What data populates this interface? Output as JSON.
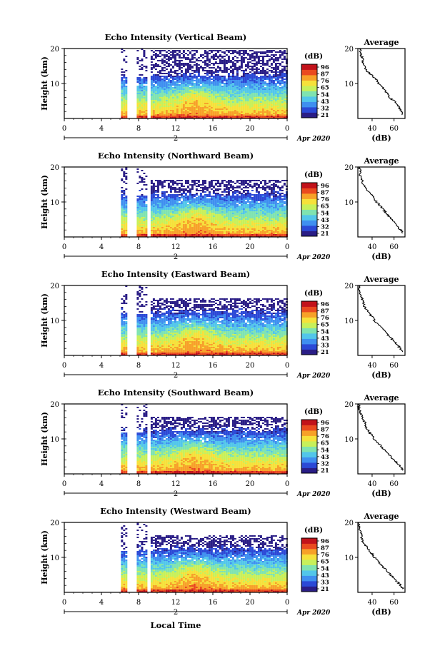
{
  "chart_data": {
    "type": "heatmap",
    "panels": [
      {
        "title": "Echo Intensity (Vertical Beam)",
        "ylabel": "Height (km)",
        "ylim": [
          0,
          20
        ],
        "yticks": [
          10,
          20
        ],
        "xticks": [
          "0",
          "4",
          "8",
          "12",
          "16",
          "20",
          "0"
        ],
        "date_marker": "2",
        "date_label": "Apr 2020",
        "cbar_label": "(dB)",
        "cbar_ticks": [
          "96",
          "87",
          "76",
          "65",
          "54",
          "43",
          "32",
          "21"
        ],
        "avg_title": "Average",
        "avg_xlabel": "(dB)",
        "avg_xticks": [
          "40",
          "60"
        ],
        "avg_xlim": [
          27,
          70
        ],
        "avg_profile": [
          [
            1,
            68
          ],
          [
            2,
            67
          ],
          [
            3,
            65
          ],
          [
            4,
            63
          ],
          [
            5,
            60
          ],
          [
            6,
            56
          ],
          [
            7,
            54
          ],
          [
            8,
            52
          ],
          [
            9,
            49
          ],
          [
            10,
            46
          ],
          [
            11,
            44
          ],
          [
            12,
            41
          ],
          [
            13,
            37
          ],
          [
            14,
            34
          ],
          [
            15,
            33
          ],
          [
            16,
            31
          ],
          [
            17,
            32
          ],
          [
            18,
            30
          ],
          [
            19,
            29
          ],
          [
            20,
            29
          ]
        ]
      },
      {
        "title": "Echo Intensity (Northward Beam)",
        "ylabel": "Height (km)",
        "ylim": [
          0,
          20
        ],
        "yticks": [
          10,
          20
        ],
        "xticks": [
          "0",
          "4",
          "8",
          "12",
          "16",
          "20",
          "0"
        ],
        "date_marker": "2",
        "date_label": "Apr 2020",
        "cbar_label": "(dB)",
        "cbar_ticks": [
          "96",
          "87",
          "76",
          "65",
          "54",
          "43",
          "32",
          "21"
        ],
        "avg_title": "Average",
        "avg_xlabel": "(dB)",
        "avg_xticks": [
          "40",
          "60"
        ],
        "avg_xlim": [
          27,
          70
        ],
        "avg_profile": [
          [
            1,
            68
          ],
          [
            2,
            66
          ],
          [
            3,
            63
          ],
          [
            4,
            61
          ],
          [
            5,
            58
          ],
          [
            6,
            55
          ],
          [
            7,
            52
          ],
          [
            8,
            50
          ],
          [
            9,
            47
          ],
          [
            10,
            44
          ],
          [
            11,
            42
          ],
          [
            12,
            40
          ],
          [
            13,
            37
          ],
          [
            14,
            34
          ],
          [
            15,
            32
          ],
          [
            16,
            31
          ],
          [
            17,
            30
          ],
          [
            18,
            29
          ],
          [
            19,
            29
          ],
          [
            20,
            28
          ]
        ]
      },
      {
        "title": "Echo Intensity (Eastward Beam)",
        "ylabel": "Height (km)",
        "ylim": [
          0,
          20
        ],
        "yticks": [
          10,
          20
        ],
        "xticks": [
          "0",
          "4",
          "8",
          "12",
          "16",
          "20",
          "0"
        ],
        "date_marker": "2",
        "date_label": "Apr 2020",
        "cbar_label": "(dB)",
        "cbar_ticks": [
          "96",
          "87",
          "76",
          "65",
          "54",
          "43",
          "33",
          "21"
        ],
        "avg_title": "Average",
        "avg_xlabel": "(dB)",
        "avg_xticks": [
          "40",
          "60"
        ],
        "avg_xlim": [
          27,
          70
        ],
        "avg_profile": [
          [
            1,
            68
          ],
          [
            2,
            66
          ],
          [
            3,
            63
          ],
          [
            4,
            60
          ],
          [
            5,
            57
          ],
          [
            6,
            54
          ],
          [
            7,
            51
          ],
          [
            8,
            48
          ],
          [
            9,
            45
          ],
          [
            10,
            42
          ],
          [
            11,
            40
          ],
          [
            12,
            37
          ],
          [
            13,
            35
          ],
          [
            14,
            33
          ],
          [
            15,
            32
          ],
          [
            16,
            31
          ],
          [
            17,
            30
          ],
          [
            18,
            29
          ],
          [
            19,
            28
          ],
          [
            20,
            28
          ]
        ]
      },
      {
        "title": "Echo Intensity (Southward Beam)",
        "ylabel": "Height (km)",
        "ylim": [
          0,
          20
        ],
        "yticks": [
          10,
          20
        ],
        "xticks": [
          "0",
          "4",
          "8",
          "12",
          "16",
          "20",
          "0"
        ],
        "date_marker": "2",
        "date_label": "Apr 2020",
        "cbar_label": "(dB)",
        "cbar_ticks": [
          "96",
          "87",
          "76",
          "65",
          "54",
          "43",
          "32",
          "21"
        ],
        "avg_title": "Average",
        "avg_xlabel": "(dB)",
        "avg_xticks": [
          "40",
          "60"
        ],
        "avg_xlim": [
          27,
          70
        ],
        "avg_profile": [
          [
            1,
            68
          ],
          [
            2,
            66
          ],
          [
            3,
            63
          ],
          [
            4,
            60
          ],
          [
            5,
            57
          ],
          [
            6,
            54
          ],
          [
            7,
            51
          ],
          [
            8,
            48
          ],
          [
            9,
            45
          ],
          [
            10,
            42
          ],
          [
            11,
            40
          ],
          [
            12,
            37
          ],
          [
            13,
            35
          ],
          [
            14,
            34
          ],
          [
            15,
            33
          ],
          [
            16,
            31
          ],
          [
            17,
            30
          ],
          [
            18,
            29
          ],
          [
            19,
            28
          ],
          [
            20,
            28
          ]
        ]
      },
      {
        "title": "Echo Intensity (Westward Beam)",
        "ylabel": "Height (km)",
        "ylim": [
          0,
          20
        ],
        "yticks": [
          10,
          20
        ],
        "xticks": [
          "0",
          "4",
          "8",
          "12",
          "16",
          "20",
          "0"
        ],
        "date_marker": "2",
        "date_label": "Apr 2020",
        "cbar_label": "(dB)",
        "cbar_ticks": [
          "96",
          "87",
          "76",
          "65",
          "54",
          "43",
          "33",
          "21"
        ],
        "avg_title": "Average",
        "avg_xlabel": "(dB)",
        "avg_xticks": [
          "40",
          "60"
        ],
        "avg_xlim": [
          27,
          70
        ],
        "avg_profile": [
          [
            1,
            68
          ],
          [
            2,
            66
          ],
          [
            3,
            63
          ],
          [
            4,
            60
          ],
          [
            5,
            57
          ],
          [
            6,
            54
          ],
          [
            7,
            51
          ],
          [
            8,
            48
          ],
          [
            9,
            45
          ],
          [
            10,
            42
          ],
          [
            11,
            40
          ],
          [
            12,
            37
          ],
          [
            13,
            35
          ],
          [
            14,
            33
          ],
          [
            15,
            31
          ],
          [
            16,
            30
          ],
          [
            17,
            30
          ],
          [
            18,
            29
          ],
          [
            19,
            28
          ],
          [
            20,
            28
          ]
        ]
      }
    ],
    "xlabel": "Local Time",
    "time_range_hours": [
      0,
      24
    ],
    "data_columns_hours": [
      [
        6.1,
        6.6
      ],
      [
        7.8,
        8.9
      ],
      [
        9.3,
        24
      ]
    ],
    "colorscale": [
      "#2a1d86",
      "#2b49d6",
      "#3f8ff0",
      "#52c6ea",
      "#7fe3b0",
      "#c7f05a",
      "#f6e13a",
      "#f7a128",
      "#ea4a1f",
      "#c2121a"
    ],
    "colorscale_range": [
      21,
      96
    ]
  }
}
